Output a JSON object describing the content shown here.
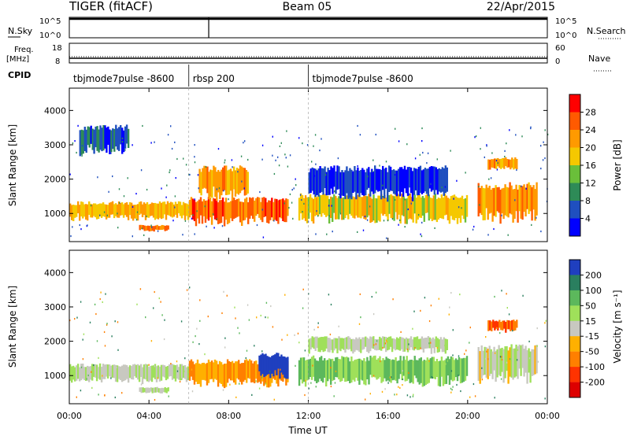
{
  "header": {
    "radar": "TIGER (fitACF)",
    "beam": "Beam 05",
    "date": "22/Apr/2015"
  },
  "summary_panel": {
    "nsky_label": "N.Sky",
    "nsearch_label": "N.Search",
    "noise_ticks": [
      "10^5",
      "10^0"
    ],
    "freq_label_line1": "Freq.",
    "freq_label_line2": "[MHz]",
    "freq_ticks": [
      "18",
      "8"
    ],
    "nave_label": "Nave",
    "nave_ticks": [
      "60",
      "0"
    ],
    "cpid_label": "CPID",
    "cpid_segments": [
      {
        "label": "tbjmode7pulse -8600",
        "start_h": 0,
        "end_h": 6
      },
      {
        "label": "rbsp 200",
        "start_h": 6,
        "end_h": 12
      },
      {
        "label": "tbjmode7pulse -8600",
        "start_h": 12,
        "end_h": 24
      }
    ]
  },
  "power_colorbar": {
    "title": "Power [dB]",
    "ticks": [
      "28",
      "24",
      "20",
      "16",
      "12",
      "8",
      "4"
    ],
    "colors": [
      "#ff0000",
      "#ff5a00",
      "#ff9a00",
      "#f5c800",
      "#6abf3a",
      "#2e8b57",
      "#1f4fbf",
      "#0000ff"
    ]
  },
  "velocity_colorbar": {
    "title": "Velocity [m s⁻¹]",
    "ticks": [
      "200",
      "100",
      "50",
      "15",
      "-15",
      "-50",
      "-100",
      "-200"
    ],
    "colors": [
      "#1f3fbf",
      "#2a7f5f",
      "#5cb85c",
      "#9fe05a",
      "#c8c8c0",
      "#ffb000",
      "#ff7f00",
      "#ff3300",
      "#dd0000"
    ]
  },
  "axes": {
    "ylabel": "Slant Range [km]",
    "yticks": [
      "4000",
      "3000",
      "2000",
      "1000"
    ],
    "xlabel": "Time UT",
    "xticks": [
      "00:00",
      "04:00",
      "08:00",
      "12:00",
      "16:00",
      "20:00",
      "00:00"
    ]
  },
  "chart_data": [
    {
      "type": "heatmap",
      "title": "",
      "quantity": "Power [dB]",
      "xlabel": "Time UT",
      "ylabel": "Slant Range [km]",
      "xlim_hours": [
        0,
        24
      ],
      "ylim_km": [
        180,
        4650
      ],
      "color_range_db": [
        0,
        32
      ],
      "echo_bands": [
        {
          "start_h": 0.0,
          "end_h": 6.0,
          "low_km": 850,
          "high_km": 1300,
          "power_db": 22
        },
        {
          "start_h": 3.5,
          "end_h": 5.0,
          "low_km": 500,
          "high_km": 650,
          "power_db": 26
        },
        {
          "start_h": 6.0,
          "end_h": 11.0,
          "low_km": 750,
          "high_km": 1400,
          "power_db": 27
        },
        {
          "start_h": 6.5,
          "end_h": 9.0,
          "low_km": 1500,
          "high_km": 2300,
          "power_db": 24
        },
        {
          "start_h": 11.5,
          "end_h": 20.0,
          "low_km": 800,
          "high_km": 1500,
          "power_db": 20
        },
        {
          "start_h": 12.0,
          "end_h": 19.0,
          "low_km": 1500,
          "high_km": 2300,
          "power_db": 6
        },
        {
          "start_h": 20.5,
          "end_h": 23.5,
          "low_km": 900,
          "high_km": 1800,
          "power_db": 25
        },
        {
          "start_h": 21.0,
          "end_h": 22.5,
          "low_km": 2300,
          "high_km": 2600,
          "power_db": 24
        },
        {
          "start_h": 0.5,
          "end_h": 3.0,
          "low_km": 2800,
          "high_km": 3500,
          "power_db": 8
        }
      ]
    },
    {
      "type": "heatmap",
      "title": "",
      "quantity": "Velocity [m s⁻¹]",
      "xlabel": "Time UT",
      "ylabel": "Slant Range [km]",
      "xlim_hours": [
        0,
        24
      ],
      "ylim_km": [
        180,
        4650
      ],
      "color_range_ms": [
        -250,
        250
      ],
      "echo_bands": [
        {
          "start_h": 0.0,
          "end_h": 6.0,
          "low_km": 850,
          "high_km": 1300,
          "velocity_ms": 0
        },
        {
          "start_h": 3.5,
          "end_h": 5.0,
          "low_km": 500,
          "high_km": 650,
          "velocity_ms": 0
        },
        {
          "start_h": 6.0,
          "end_h": 11.0,
          "low_km": 750,
          "high_km": 1400,
          "velocity_ms": -80
        },
        {
          "start_h": 9.5,
          "end_h": 11.0,
          "low_km": 1000,
          "high_km": 1600,
          "velocity_ms": 180
        },
        {
          "start_h": 11.5,
          "end_h": 20.0,
          "low_km": 800,
          "high_km": 1500,
          "velocity_ms": 40
        },
        {
          "start_h": 12.0,
          "end_h": 19.0,
          "low_km": 1700,
          "high_km": 2100,
          "velocity_ms": 0
        },
        {
          "start_h": 20.5,
          "end_h": 23.5,
          "low_km": 900,
          "high_km": 1800,
          "velocity_ms": -10
        },
        {
          "start_h": 21.0,
          "end_h": 22.5,
          "low_km": 2300,
          "high_km": 2600,
          "velocity_ms": -150
        }
      ]
    }
  ]
}
